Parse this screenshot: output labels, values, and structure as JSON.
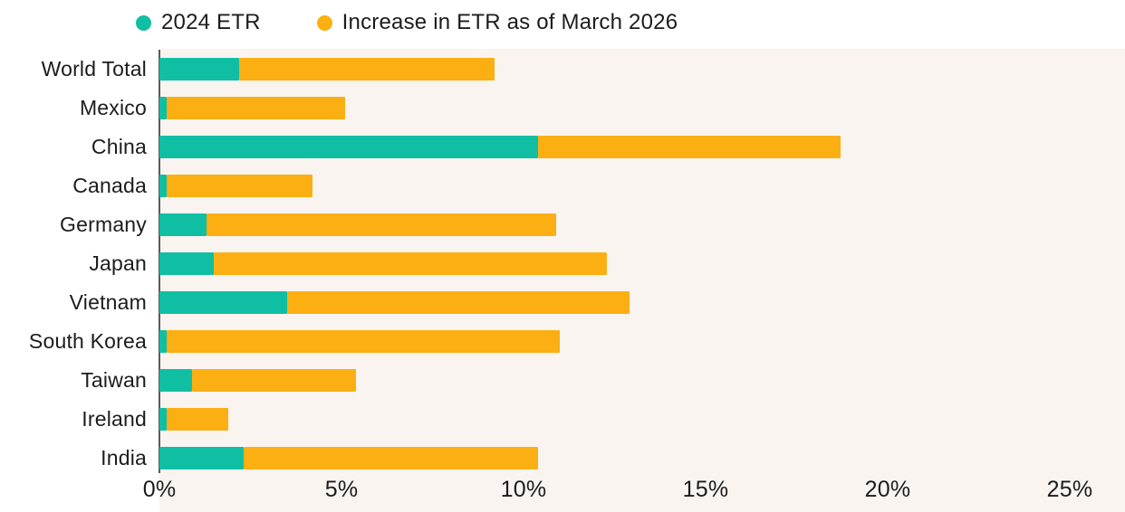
{
  "legend": {
    "items": [
      {
        "label": "2024 ETR",
        "color": "#10BFA3"
      },
      {
        "label": "Increase in ETR as of March 2026",
        "color": "#FBAF12"
      }
    ]
  },
  "chart_data": {
    "type": "bar",
    "orientation": "horizontal",
    "stacked": true,
    "title": "",
    "xlabel": "",
    "ylabel": "",
    "categories": [
      "World Total",
      "Mexico",
      "China",
      "Canada",
      "Germany",
      "Japan",
      "Vietnam",
      "South Korea",
      "Taiwan",
      "Ireland",
      "India"
    ],
    "series": [
      {
        "name": "2024 ETR",
        "color": "#10BFA3",
        "values": [
          2.2,
          0.2,
          10.4,
          0.2,
          1.3,
          1.5,
          3.5,
          0.2,
          0.9,
          0.2,
          2.3
        ]
      },
      {
        "name": "Increase in ETR as of March 2026",
        "color": "#FBAF12",
        "values": [
          7.0,
          4.9,
          8.3,
          4.0,
          9.6,
          10.8,
          9.4,
          10.8,
          4.5,
          1.7,
          8.1
        ]
      }
    ],
    "stacked_totals": [
      9.2,
      5.1,
      18.7,
      4.2,
      10.9,
      12.3,
      12.9,
      11.0,
      5.4,
      1.9,
      10.4
    ],
    "x_ticks": [
      "0%",
      "5%",
      "10%",
      "15%",
      "20%",
      "25%"
    ],
    "x_tick_values": [
      0,
      5,
      10,
      15,
      20,
      25
    ],
    "xlim": [
      0,
      26.5
    ],
    "grid": false,
    "legend_position": "top",
    "colors": {
      "plot_background": "#FAF4F1",
      "axis_line": "#5A5A5A",
      "text": "#1C1C1C"
    }
  }
}
